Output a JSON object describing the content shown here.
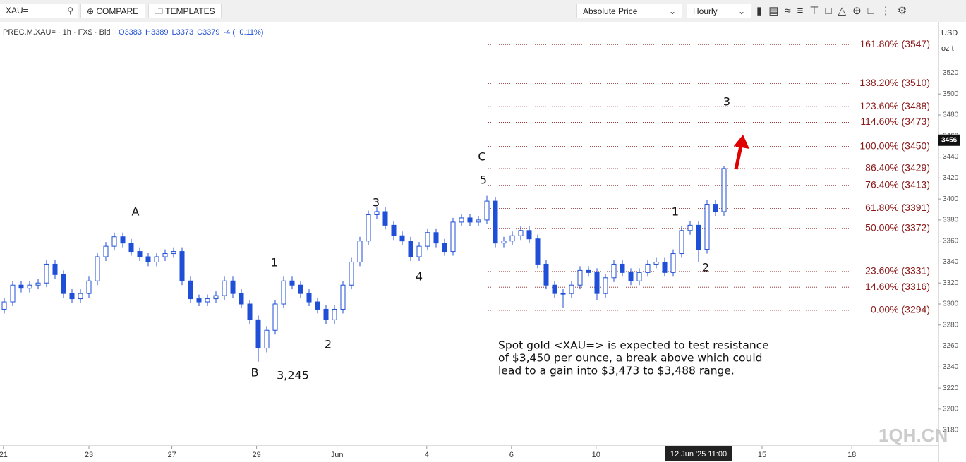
{
  "toolbar": {
    "symbol": "XAU=",
    "compare": "COMPARE",
    "templates": "TEMPLATES",
    "price_mode": "Absolute Price",
    "interval": "Hourly"
  },
  "legend": {
    "title": "PREC.M.XAU= · 1h · FX$ · Bid",
    "ohlc": [
      {
        "key": "O",
        "value": 3383
      },
      {
        "key": "H",
        "value": 3389
      },
      {
        "key": "L",
        "value": 3373
      },
      {
        "key": "C",
        "value": 3379
      }
    ],
    "change": -4,
    "change_pct": "(−0.11%)"
  },
  "currency": "USD",
  "unit": "oz t",
  "watermark": "1QH.CN",
  "chart_data": {
    "type": "candlestick",
    "color": "#1f4fd6",
    "open": [
      3295,
      3302,
      3318,
      3315,
      3318,
      3320,
      3338,
      3328,
      3310,
      3305,
      3310,
      3322,
      3345,
      3355,
      3364,
      3358,
      3350,
      3345,
      3340,
      3345,
      3348,
      3350,
      3322,
      3305,
      3302,
      3305,
      3308,
      3322,
      3310,
      3300,
      3285,
      3258,
      3275,
      3300,
      3322,
      3318,
      3310,
      3302,
      3295,
      3285,
      3295,
      3318,
      3340,
      3360,
      3385,
      3388,
      3375,
      3365,
      3360,
      3345,
      3355,
      3368,
      3358,
      3350,
      3378,
      3382,
      3378,
      3380,
      3398,
      3358,
      3360,
      3365,
      3370,
      3362,
      3338,
      3318,
      3310,
      3310,
      3318,
      3332,
      3330,
      3310,
      3325,
      3338,
      3330,
      3322,
      3330,
      3338,
      3340,
      3330,
      3348,
      3370,
      3375,
      3352,
      3395,
      3388
    ],
    "high": [
      3306,
      3322,
      3322,
      3322,
      3324,
      3342,
      3342,
      3332,
      3314,
      3314,
      3326,
      3349,
      3359,
      3368,
      3368,
      3362,
      3354,
      3349,
      3349,
      3352,
      3354,
      3354,
      3326,
      3309,
      3309,
      3312,
      3326,
      3326,
      3314,
      3304,
      3289,
      3279,
      3304,
      3326,
      3326,
      3322,
      3314,
      3306,
      3299,
      3299,
      3322,
      3344,
      3364,
      3389,
      3392,
      3392,
      3379,
      3369,
      3364,
      3359,
      3372,
      3372,
      3362,
      3382,
      3386,
      3386,
      3384,
      3403,
      3402,
      3364,
      3369,
      3374,
      3374,
      3366,
      3342,
      3322,
      3314,
      3322,
      3336,
      3336,
      3334,
      3329,
      3342,
      3342,
      3334,
      3334,
      3342,
      3344,
      3344,
      3352,
      3374,
      3379,
      3379,
      3399,
      3399,
      3431
    ],
    "low": [
      3291,
      3298,
      3311,
      3311,
      3314,
      3316,
      3324,
      3306,
      3301,
      3301,
      3306,
      3318,
      3341,
      3351,
      3354,
      3346,
      3341,
      3336,
      3336,
      3341,
      3344,
      3318,
      3301,
      3298,
      3298,
      3301,
      3304,
      3306,
      3296,
      3281,
      3245,
      3254,
      3271,
      3296,
      3314,
      3306,
      3298,
      3291,
      3281,
      3281,
      3291,
      3314,
      3336,
      3356,
      3381,
      3371,
      3361,
      3356,
      3341,
      3341,
      3351,
      3354,
      3346,
      3346,
      3374,
      3374,
      3374,
      3376,
      3354,
      3354,
      3356,
      3361,
      3358,
      3334,
      3314,
      3306,
      3296,
      3306,
      3314,
      3326,
      3304,
      3306,
      3321,
      3326,
      3318,
      3318,
      3326,
      3334,
      3326,
      3326,
      3344,
      3366,
      3340,
      3348,
      3384,
      3384
    ],
    "close": [
      3302,
      3318,
      3315,
      3318,
      3320,
      3338,
      3328,
      3310,
      3305,
      3310,
      3322,
      3345,
      3355,
      3364,
      3358,
      3350,
      3345,
      3340,
      3345,
      3348,
      3350,
      3322,
      3305,
      3302,
      3305,
      3308,
      3322,
      3310,
      3300,
      3285,
      3258,
      3275,
      3300,
      3322,
      3318,
      3310,
      3302,
      3295,
      3285,
      3295,
      3318,
      3340,
      3360,
      3385,
      3388,
      3375,
      3365,
      3360,
      3345,
      3355,
      3368,
      3358,
      3350,
      3378,
      3382,
      3378,
      3380,
      3398,
      3358,
      3360,
      3365,
      3370,
      3362,
      3338,
      3318,
      3310,
      3310,
      3318,
      3332,
      3330,
      3310,
      3325,
      3338,
      3330,
      3322,
      3330,
      3338,
      3340,
      3330,
      3348,
      3370,
      3375,
      3352,
      3395,
      3388,
      3429
    ],
    "xlim": [
      0,
      111
    ],
    "xticks": [
      {
        "value": 0.4,
        "label": "21"
      },
      {
        "value": 10.5,
        "label": "23"
      },
      {
        "value": 20.3,
        "label": "27"
      },
      {
        "value": 30.3,
        "label": "29"
      },
      {
        "value": 39.8,
        "label": "Jun"
      },
      {
        "value": 50.4,
        "label": "4"
      },
      {
        "value": 60.4,
        "label": "6"
      },
      {
        "value": 70.4,
        "label": "10"
      },
      {
        "value": 90,
        "label": "15"
      },
      {
        "value": 100.6,
        "label": "18"
      }
    ],
    "cursor_x": {
      "value": 82.5,
      "label": "12 Jun '25   11:00"
    },
    "ylim": [
      3165,
      3566
    ],
    "yticks": [
      3180,
      3200,
      3220,
      3240,
      3260,
      3280,
      3300,
      3320,
      3340,
      3360,
      3380,
      3400,
      3420,
      3440,
      3460,
      3480,
      3500,
      3520
    ],
    "last_price": 3456,
    "fib_color": "#8b1a1a",
    "fib_levels": [
      {
        "value": 3547,
        "label": "161.80% (3547)"
      },
      {
        "value": 3510,
        "label": "138.20% (3510)"
      },
      {
        "value": 3488,
        "label": "123.60% (3488)"
      },
      {
        "value": 3473,
        "label": "114.60% (3473)"
      },
      {
        "value": 3450,
        "label": "100.00% (3450)"
      },
      {
        "value": 3429,
        "label": "86.40% (3429)"
      },
      {
        "value": 3413,
        "label": "76.40% (3413)"
      },
      {
        "value": 3391,
        "label": "61.80% (3391)"
      },
      {
        "value": 3372,
        "label": "50.00% (3372)"
      },
      {
        "value": 3331,
        "label": "23.60% (3331)"
      },
      {
        "value": 3316,
        "label": "14.60% (3316)"
      },
      {
        "value": 3294,
        "label": "0.00% (3294)"
      }
    ],
    "annotations": [
      "A",
      "1",
      "2",
      "B",
      "3,245",
      "3",
      "4",
      "C",
      "5",
      "1",
      "2",
      "3"
    ],
    "note": [
      "Spot gold <XAU=> is expected to test resistance",
      "of $3,450 per ounce, a break above which could",
      "lead to a gain into $3,473 to $3,488 range."
    ]
  }
}
